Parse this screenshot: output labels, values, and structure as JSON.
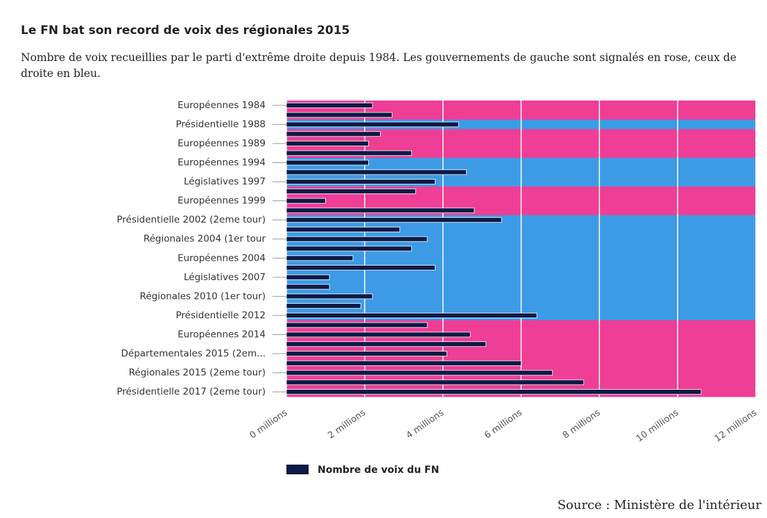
{
  "chart_data": {
    "type": "barh",
    "title": "Le FN bat son record de voix des régionales 2015",
    "subtitle": "Nombre de voix recueillies par le parti d'extrême droite depuis 1984. Les gouvernements de gauche sont signalés en rose, ceux de droite en bleu.",
    "source": "Source : Ministère de l'intérieur",
    "categories": [
      "Européennes 1984",
      null,
      "Présidentielle 1988",
      null,
      "Européennes 1989",
      null,
      "Européennes 1994",
      null,
      "Législatives 1997",
      null,
      "Européennes 1999",
      null,
      "Présidentielle 2002 (2eme tour)",
      null,
      "Régionales 2004 (1er tour",
      null,
      "Européennes 2004",
      null,
      "Législatives 2007",
      null,
      "Régionales 2010 (1er tour)",
      null,
      "Présidentielle 2012",
      null,
      "Européennes 2014",
      null,
      "Départementales 2015 (2em...",
      null,
      "Régionales 2015 (2eme tour)",
      null,
      "Présidentielle 2017 (2eme tour)"
    ],
    "series": [
      {
        "name": "Nombre de voix du FN",
        "color": "#0d1a45",
        "values": [
          2.2,
          2.7,
          4.4,
          2.4,
          2.1,
          3.2,
          2.1,
          4.6,
          3.8,
          3.3,
          1.0,
          4.8,
          5.5,
          2.9,
          3.6,
          3.2,
          1.7,
          3.8,
          1.1,
          1.1,
          2.2,
          1.9,
          6.4,
          3.6,
          4.7,
          5.1,
          4.1,
          6.0,
          6.8,
          7.6,
          10.6
        ]
      }
    ],
    "band_colors": [
      "#ee3e96",
      "#ee3e96",
      "#3d9be6",
      "#ee3e96",
      "#ee3e96",
      "#ee3e96",
      "#3d9be6",
      "#3d9be6",
      "#3d9be6",
      "#ee3e96",
      "#ee3e96",
      "#ee3e96",
      "#3d9be6",
      "#3d9be6",
      "#3d9be6",
      "#3d9be6",
      "#3d9be6",
      "#3d9be6",
      "#3d9be6",
      "#3d9be6",
      "#3d9be6",
      "#3d9be6",
      "#3d9be6",
      "#ee3e96",
      "#ee3e96",
      "#ee3e96",
      "#ee3e96",
      "#ee3e96",
      "#ee3e96",
      "#ee3e96",
      "#ee3e96"
    ],
    "xlim": [
      0,
      12
    ],
    "xticks": [
      {
        "value": 0,
        "label": "0 millions"
      },
      {
        "value": 2,
        "label": "2 millions"
      },
      {
        "value": 4,
        "label": "4 millions"
      },
      {
        "value": 6,
        "label": "6 millions"
      },
      {
        "value": 8,
        "label": "8 millions"
      },
      {
        "value": 10,
        "label": "10 millions"
      },
      {
        "value": 12,
        "label": "12 millions"
      }
    ],
    "grid": true
  }
}
